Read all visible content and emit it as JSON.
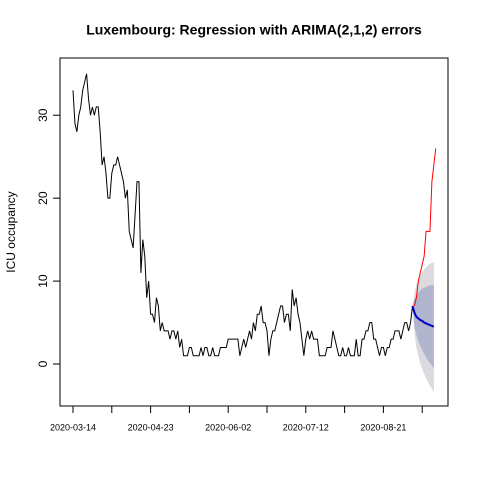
{
  "chart_data": {
    "type": "line",
    "title": "Luxembourg: Regression with ARIMA(2,1,2) errors",
    "ylabel": "ICU occupancy",
    "xlim": [
      -6.7,
      193.3
    ],
    "ylim": [
      -5.06,
      36.9
    ],
    "yticks": [
      0,
      10,
      20,
      30
    ],
    "xticks": [
      {
        "value": 0,
        "label": "2020-03-14"
      },
      {
        "value": 40,
        "label": "2020-04-23"
      },
      {
        "value": 80,
        "label": "2020-06-02"
      },
      {
        "value": 120,
        "label": "2020-07-12"
      },
      {
        "value": 160,
        "label": "2020-08-21"
      }
    ],
    "xminorticks": [
      20,
      60,
      100,
      140,
      180
    ],
    "color": "#000000",
    "x": [
      0,
      1,
      2,
      3,
      4,
      5,
      6,
      7,
      8,
      9,
      10,
      11,
      12,
      13,
      14,
      15,
      16,
      17,
      18,
      19,
      20,
      21,
      22,
      23,
      24,
      25,
      26,
      27,
      28,
      29,
      30,
      31,
      32,
      33,
      34,
      35,
      36,
      37,
      38,
      39,
      40,
      41,
      42,
      43,
      44,
      45,
      46,
      47,
      48,
      49,
      50,
      51,
      52,
      53,
      54,
      55,
      56,
      57,
      58,
      59,
      60,
      61,
      62,
      63,
      64,
      65,
      66,
      67,
      68,
      69,
      70,
      71,
      72,
      73,
      74,
      75,
      76,
      77,
      78,
      79,
      80,
      81,
      82,
      83,
      84,
      85,
      86,
      87,
      88,
      89,
      90,
      91,
      92,
      93,
      94,
      95,
      96,
      97,
      98,
      99,
      100,
      101,
      102,
      103,
      104,
      105,
      106,
      107,
      108,
      109,
      110,
      111,
      112,
      113,
      114,
      115,
      116,
      117,
      118,
      119,
      120,
      121,
      122,
      123,
      124,
      125,
      126,
      127,
      128,
      129,
      130,
      131,
      132,
      133,
      134,
      135,
      136,
      137,
      138,
      139,
      140,
      141,
      142,
      143,
      144,
      145,
      146,
      147,
      148,
      149,
      150,
      151,
      152,
      153,
      154,
      155,
      156,
      157,
      158,
      159,
      160,
      161,
      162,
      163,
      164,
      165,
      166,
      167,
      168,
      169,
      170,
      171,
      172,
      173,
      174,
      175
    ],
    "values": [
      33,
      29,
      28,
      30,
      31,
      33,
      34,
      35,
      32,
      30,
      31,
      30,
      31,
      31,
      28,
      24,
      25,
      23,
      20,
      20,
      23,
      24,
      24,
      25,
      24,
      23,
      22,
      20,
      21,
      16,
      15,
      14,
      18,
      22,
      22,
      11,
      15,
      13,
      8,
      10,
      6,
      6,
      5,
      8,
      7,
      4,
      5,
      4,
      4,
      4,
      3,
      4,
      4,
      3,
      4,
      2,
      3,
      1,
      1,
      1,
      2,
      2,
      1,
      1,
      1,
      1,
      2,
      1,
      2,
      2,
      1,
      1,
      2,
      1,
      1,
      1,
      2,
      2,
      2,
      2,
      3,
      3,
      3,
      3,
      3,
      3,
      1,
      2,
      3,
      2,
      3,
      4,
      3,
      5,
      4,
      6,
      6,
      7,
      5,
      5,
      4,
      1,
      3,
      4,
      4,
      5,
      6,
      7,
      7,
      5,
      6,
      6,
      4,
      9,
      7,
      8,
      6,
      5,
      3,
      1,
      3,
      4,
      3,
      4,
      3,
      3,
      3,
      1,
      1,
      1,
      1,
      2,
      2,
      2,
      4,
      3,
      2,
      1,
      1,
      2,
      1,
      1,
      2,
      1,
      1,
      1,
      3,
      1,
      1,
      3,
      3,
      4,
      4,
      5,
      5,
      3,
      3,
      2,
      1,
      2,
      2,
      1,
      2,
      2,
      3,
      3,
      4,
      4,
      4,
      3,
      4,
      5,
      5,
      4,
      5,
      7
    ],
    "forecast": {
      "x": [
        175,
        176,
        177,
        178,
        179,
        180,
        181,
        182,
        183,
        184,
        185,
        186
      ],
      "mean": [
        7,
        6.2,
        5.7,
        5.5,
        5.3,
        5.2,
        5.0,
        4.9,
        4.8,
        4.7,
        4.6,
        4.5
      ],
      "upper80": [
        7,
        7.8,
        8.3,
        8.6,
        8.9,
        9.1,
        9.2,
        9.3,
        9.4,
        9.5,
        9.5,
        9.6
      ],
      "lower80": [
        7,
        4.6,
        3.5,
        2.8,
        2.2,
        1.7,
        1.2,
        0.8,
        0.4,
        0.1,
        -0.2,
        -0.5
      ],
      "upper95": [
        7,
        8.6,
        9.6,
        10.2,
        10.7,
        11.1,
        11.4,
        11.7,
        11.9,
        12.1,
        12.2,
        12.3
      ],
      "lower95": [
        7,
        3.8,
        2.0,
        1.0,
        0.1,
        -0.6,
        -1.2,
        -1.7,
        -2.2,
        -2.6,
        -3.0,
        -3.4
      ],
      "color": "#0000cc",
      "color80": "#b1b5ce",
      "color95": "#dbdbdf"
    },
    "actual": {
      "x": [
        176,
        177,
        178,
        179,
        180,
        181,
        182,
        183,
        184,
        185,
        186,
        187
      ],
      "values": [
        7,
        8,
        10,
        11,
        12,
        13,
        16,
        16,
        16,
        22,
        24,
        26
      ],
      "color": "#ff0000"
    }
  }
}
